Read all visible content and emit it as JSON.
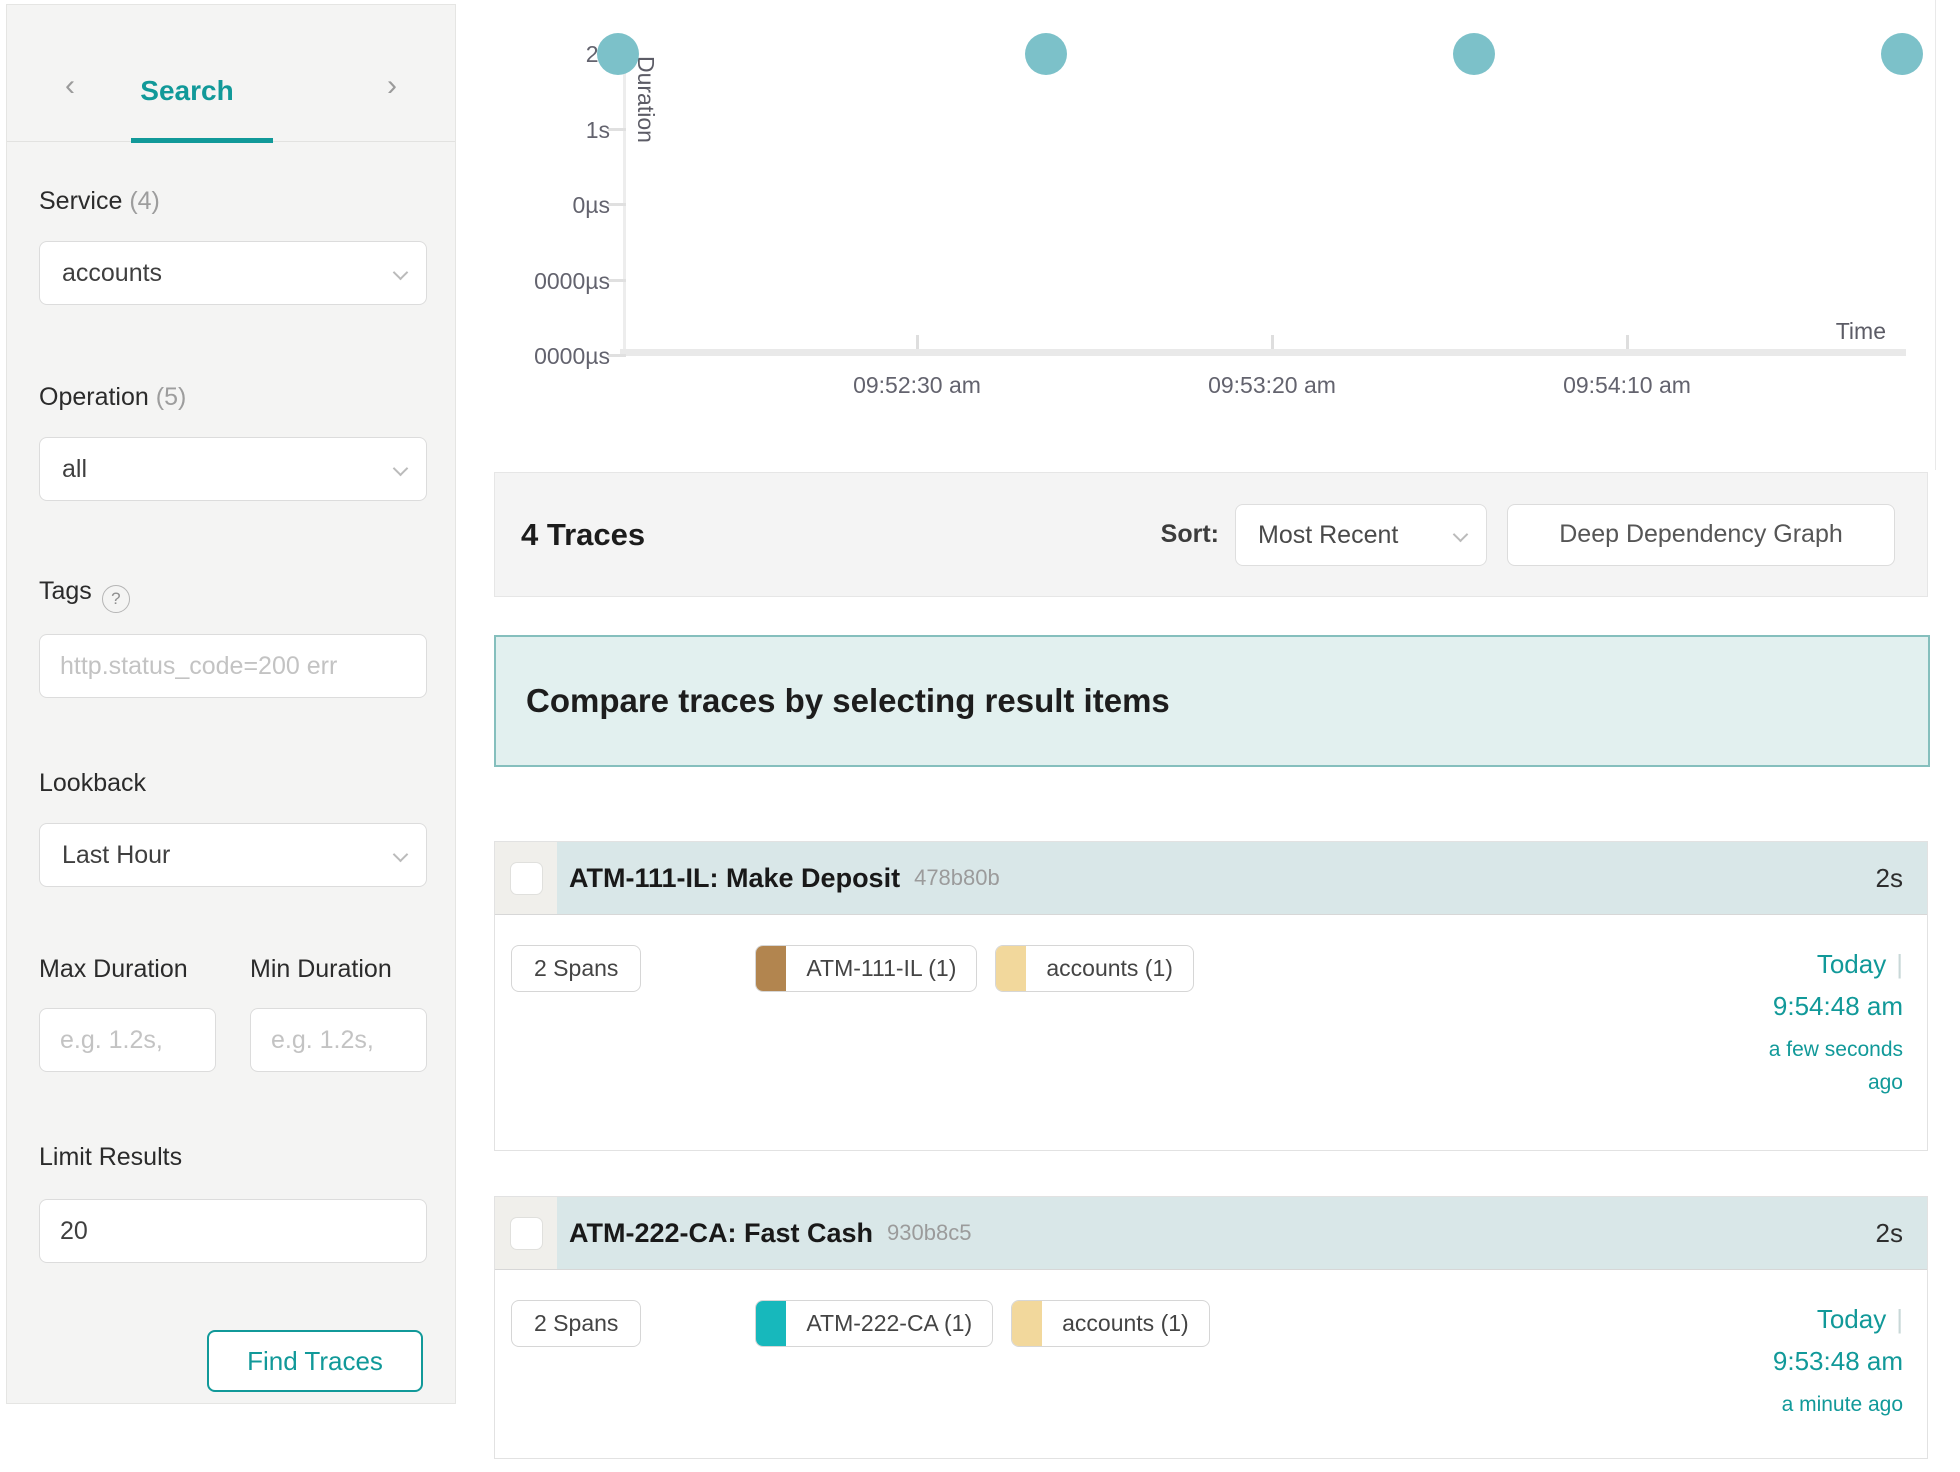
{
  "colors": {
    "accent": "#119999",
    "scatter_dot": "#7cc1c9",
    "banner_bg": "#e2f0ef",
    "banner_border": "#85bfbd",
    "card_header_bg": "#d9e7e8"
  },
  "sidebar": {
    "nav_prev": "‹",
    "nav_next": "›",
    "title": "Search",
    "service_label": "Service",
    "service_count": "(4)",
    "service_value": "accounts",
    "operation_label": "Operation",
    "operation_count": "(5)",
    "operation_value": "all",
    "tags_label": "Tags",
    "tags_help": "?",
    "tags_placeholder": "http.status_code=200 err",
    "lookback_label": "Lookback",
    "lookback_value": "Last Hour",
    "max_duration_label": "Max Duration",
    "max_duration_placeholder": "e.g. 1.2s,",
    "min_duration_label": "Min Duration",
    "min_duration_placeholder": "e.g. 1.2s,",
    "limit_label": "Limit Results",
    "limit_value": "20",
    "find_button": "Find Traces"
  },
  "chart_data": {
    "type": "scatter",
    "xlabel": "Time",
    "ylabel": "Duration",
    "y_ticks": [
      "2s",
      "1s",
      "0µs",
      "0000µs",
      "0000µs"
    ],
    "x_ticks": [
      "09:52:30 am",
      "09:53:20 am",
      "09:54:10 am"
    ],
    "points": [
      {
        "time": "9:51:48 am",
        "duration": "2s"
      },
      {
        "time": "9:52:48 am",
        "duration": "2s"
      },
      {
        "time": "9:53:48 am",
        "duration": "2s"
      },
      {
        "time": "9:54:48 am",
        "duration": "2s"
      }
    ],
    "grid": false,
    "point_color": "#7cc1c9"
  },
  "results_header": {
    "count_text": "4 Traces",
    "sort_label": "Sort:",
    "sort_value": "Most Recent",
    "ddg_button": "Deep Dependency Graph"
  },
  "banner": {
    "text": "Compare traces by selecting result items"
  },
  "traces": [
    {
      "title": "ATM-111-IL: Make Deposit",
      "trace_id": "478b80b",
      "duration": "2s",
      "spans": "2 Spans",
      "tags": [
        {
          "label": "ATM-111-IL (1)",
          "color": "#b2854f"
        },
        {
          "label": "accounts (1)",
          "color": "#f2d89c"
        }
      ],
      "date": "Today",
      "time": "9:54:48 am",
      "relative": "a few seconds ago"
    },
    {
      "title": "ATM-222-CA: Fast Cash",
      "trace_id": "930b8c5",
      "duration": "2s",
      "spans": "2 Spans",
      "tags": [
        {
          "label": "ATM-222-CA (1)",
          "color": "#17b8bc"
        },
        {
          "label": "accounts (1)",
          "color": "#f2d89c"
        }
      ],
      "date": "Today",
      "time": "9:53:48 am",
      "relative": "a minute ago"
    }
  ]
}
